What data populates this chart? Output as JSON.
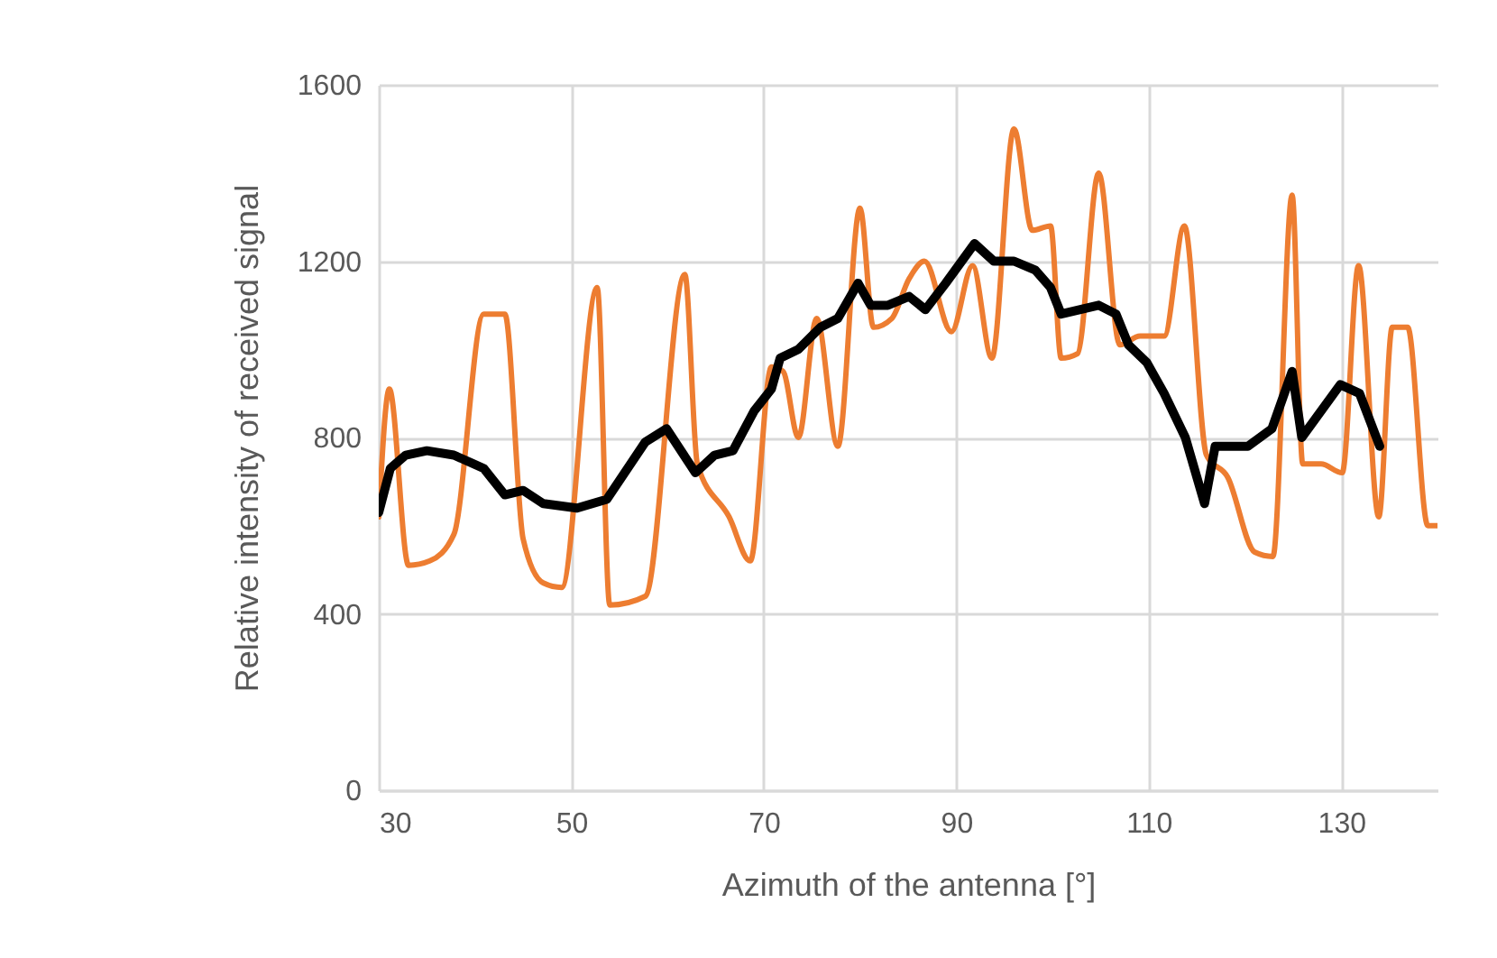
{
  "chart_data": {
    "type": "line",
    "xlabel": "Azimuth of the antenna [°]",
    "ylabel": "Relative intensity of received signal",
    "xlim": [
      30,
      140
    ],
    "xticks": [
      30,
      50,
      70,
      90,
      110,
      130
    ],
    "ylim": [
      0,
      1600
    ],
    "yticks": [
      0,
      400,
      800,
      1200,
      1600
    ],
    "grid": true,
    "legend": false,
    "marker": "none",
    "series": [
      {
        "color": "#ed7d31",
        "x": [
          30,
          31.1,
          33.1,
          35.3,
          37.8,
          40.9,
          43.1,
          45,
          47.1,
          49,
          52.7,
          54,
          57.7,
          61.8,
          63.1,
          66.4,
          68.6,
          70.8,
          72,
          73.6,
          75.5,
          77.7,
          80,
          81.4,
          83.3,
          85.1,
          86.7,
          89.5,
          91.7,
          93.7,
          96,
          97.9,
          99.8,
          100.9,
          102.6,
          104.8,
          107,
          109.1,
          111.6,
          113.7,
          116,
          118.2,
          121,
          122.9,
          124.9,
          126,
          127.9,
          130.1,
          131.8,
          133.9,
          135.3,
          136.9,
          139,
          140
        ],
        "values": [
          620,
          910,
          510,
          520,
          580,
          1080,
          1080,
          570,
          470,
          460,
          1140,
          420,
          440,
          1170,
          740,
          620,
          520,
          960,
          950,
          800,
          1070,
          780,
          1320,
          1050,
          1070,
          1160,
          1200,
          1040,
          1190,
          980,
          1500,
          1270,
          1280,
          980,
          990,
          1400,
          1010,
          1030,
          1030,
          1280,
          760,
          710,
          540,
          530,
          1350,
          740,
          740,
          720,
          1190,
          620,
          1050,
          1050,
          600,
          600
        ]
      },
      {
        "color": "#000000",
        "x": [
          30,
          31.2,
          32.8,
          35,
          37.8,
          40.9,
          43.1,
          45,
          47.1,
          50.6,
          53.7,
          57.7,
          59.9,
          62.9,
          64.9,
          66.8,
          69,
          70.8,
          71.7,
          73.6,
          75.9,
          77.7,
          79.8,
          81.1,
          82.9,
          85.1,
          86.8,
          88.9,
          91.9,
          93.9,
          96,
          98.2,
          99.8,
          100.9,
          104.8,
          106.6,
          107.9,
          109.8,
          111.6,
          113.8,
          115.8,
          116.9,
          120.3,
          122.8,
          124.9,
          125.9,
          129.9,
          131.9,
          134
        ],
        "values": [
          630,
          730,
          760,
          770,
          760,
          730,
          670,
          680,
          650,
          640,
          660,
          790,
          820,
          720,
          760,
          770,
          860,
          910,
          980,
          1000,
          1050,
          1070,
          1150,
          1100,
          1100,
          1120,
          1090,
          1150,
          1240,
          1200,
          1200,
          1180,
          1140,
          1080,
          1100,
          1080,
          1010,
          970,
          900,
          800,
          650,
          780,
          780,
          820,
          950,
          800,
          920,
          900,
          780
        ]
      }
    ]
  }
}
